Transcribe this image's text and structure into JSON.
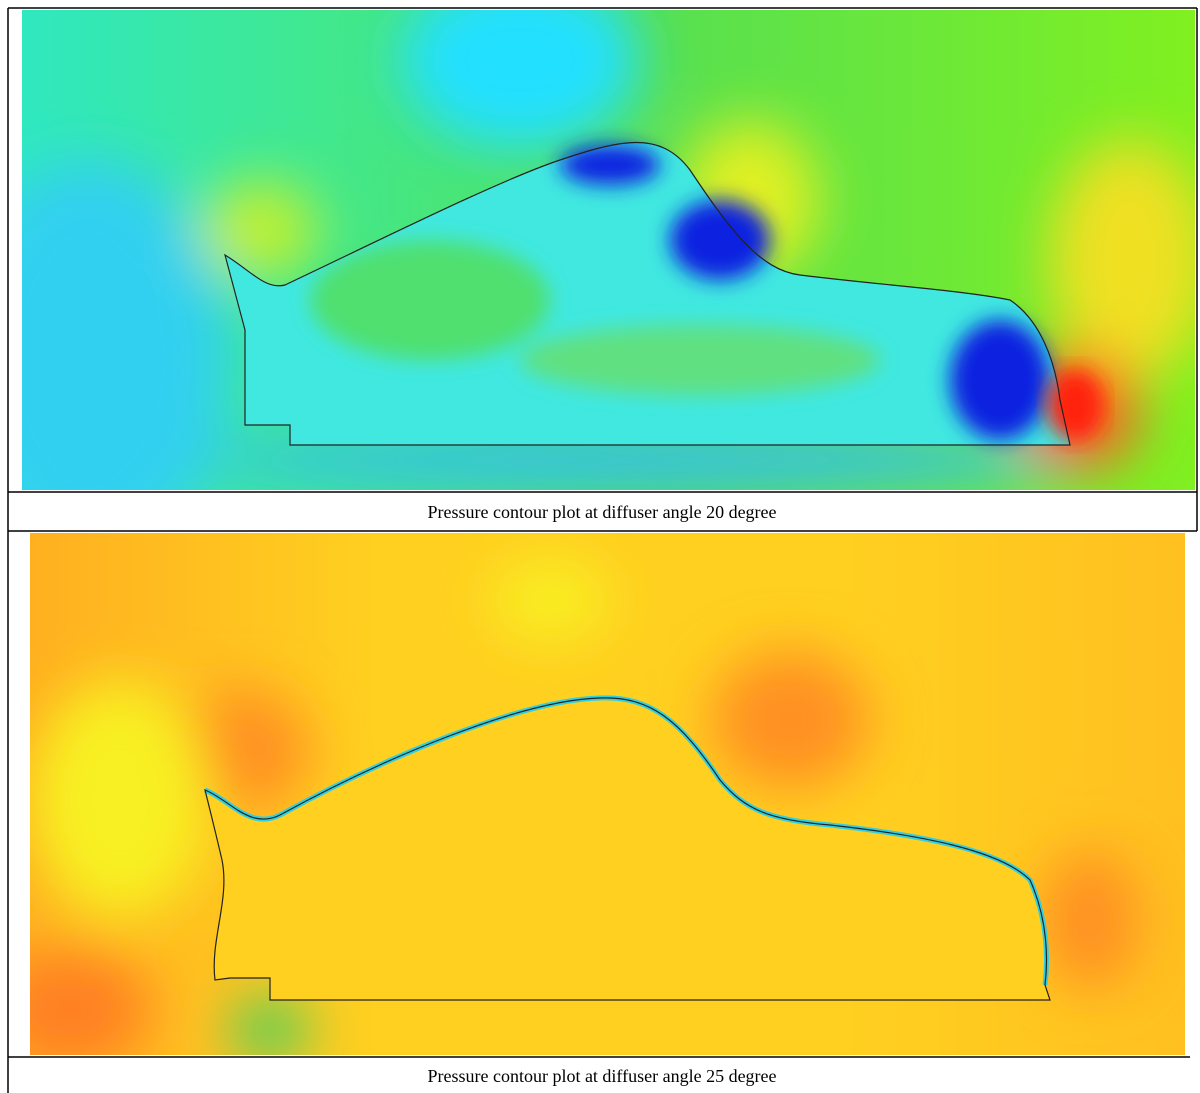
{
  "figures": [
    {
      "caption": "Pressure contour plot at diffuser angle 20 degree"
    },
    {
      "caption": "Pressure contour plot at diffuser angle 25 degree"
    }
  ]
}
